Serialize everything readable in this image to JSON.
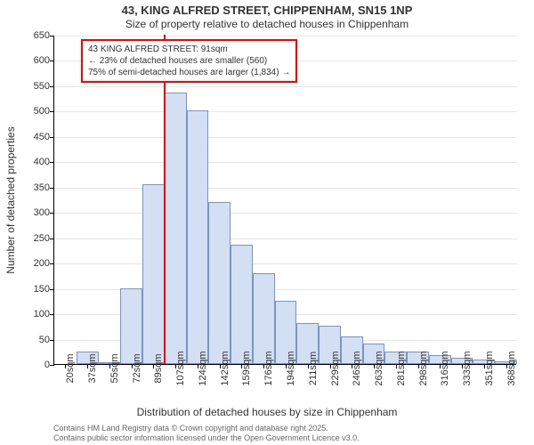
{
  "chart": {
    "type": "histogram",
    "title_line1": "43, KING ALFRED STREET, CHIPPENHAM, SN15 1NP",
    "title_line2": "Size of property relative to detached houses in Chippenham",
    "ylabel": "Number of detached properties",
    "xlabel": "Distribution of detached houses by size in Chippenham",
    "title_fontsize": 13,
    "subtitle_fontsize": 12,
    "label_fontsize": 12,
    "tick_fontsize": 11,
    "background_color": "#ffffff",
    "grid_color": "#e6e6e6",
    "bar_fill": "#d3dff2",
    "bar_border": "#7a94c8",
    "highlight_color": "#ff0000",
    "axis_color": "#000000",
    "ylim": [
      0,
      650
    ],
    "ytick_step": 50,
    "yticks": [
      0,
      50,
      100,
      150,
      200,
      250,
      300,
      350,
      400,
      450,
      500,
      550,
      600,
      650
    ],
    "x_categories": [
      "20sqm",
      "37sqm",
      "55sqm",
      "72sqm",
      "89sqm",
      "107sqm",
      "124sqm",
      "142sqm",
      "159sqm",
      "176sqm",
      "194sqm",
      "211sqm",
      "229sqm",
      "246sqm",
      "263sqm",
      "281sqm",
      "298sqm",
      "316sqm",
      "333sqm",
      "351sqm",
      "368sqm"
    ],
    "bar_values": [
      0,
      25,
      3,
      150,
      355,
      535,
      500,
      320,
      235,
      180,
      125,
      80,
      75,
      55,
      40,
      25,
      25,
      18,
      12,
      8,
      5
    ],
    "highlight_index": 5,
    "highlight_value": 91,
    "annotation": {
      "line1": "43 KING ALFRED STREET: 91sqm",
      "line2": "← 23% of detached houses are smaller (560)",
      "line3": "75% of semi-detached houses are larger (1,834) →",
      "border_color": "#ff0000",
      "background": "#ffffff",
      "fontsize": 10
    },
    "footer_line1": "Contains HM Land Registry data © Crown copyright and database right 2025.",
    "footer_line2": "Contains public sector information licensed under the Open Government Licence v3.0.",
    "footer_color": "#666666",
    "footer_fontsize": 9
  }
}
